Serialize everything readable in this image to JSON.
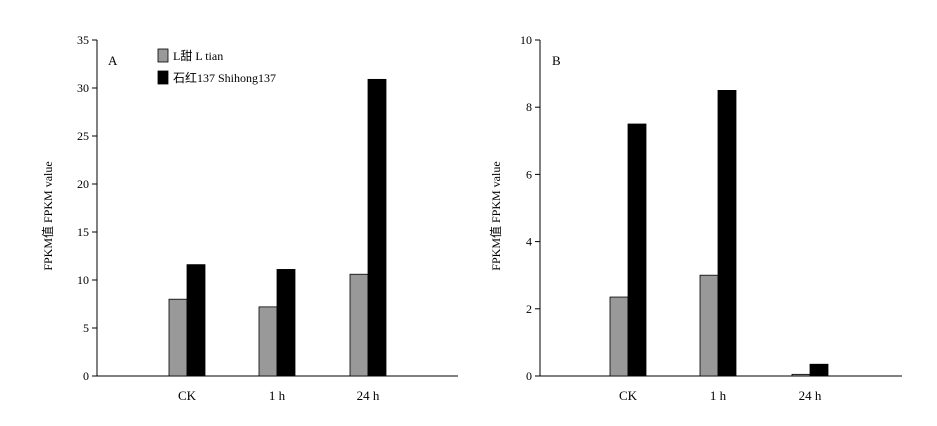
{
  "chart_data": [
    {
      "type": "bar",
      "panel_label": "A",
      "categories": [
        "CK",
        "1 h",
        "24 h"
      ],
      "ylabel": "FPKM值 FPKM value",
      "ylim": [
        0,
        35
      ],
      "yticks": [
        0,
        5,
        10,
        15,
        20,
        25,
        30,
        35
      ],
      "series": [
        {
          "name": "L甜 L tian",
          "color": "#999999",
          "values": [
            8.0,
            7.2,
            10.6
          ]
        },
        {
          "name": "石红137 Shihong137",
          "color": "#000000",
          "values": [
            11.6,
            11.1,
            30.9
          ]
        }
      ],
      "legend": "top-left"
    },
    {
      "type": "bar",
      "panel_label": "B",
      "categories": [
        "CK",
        "1 h",
        "24 h"
      ],
      "ylabel": "FPKM值 FPKM value",
      "ylim": [
        0,
        10
      ],
      "yticks": [
        0,
        2,
        4,
        6,
        8,
        10
      ],
      "series": [
        {
          "color": "#999999",
          "values": [
            2.35,
            3.0,
            0.05
          ]
        },
        {
          "color": "#000000",
          "values": [
            7.5,
            8.5,
            0.35
          ]
        }
      ]
    }
  ]
}
